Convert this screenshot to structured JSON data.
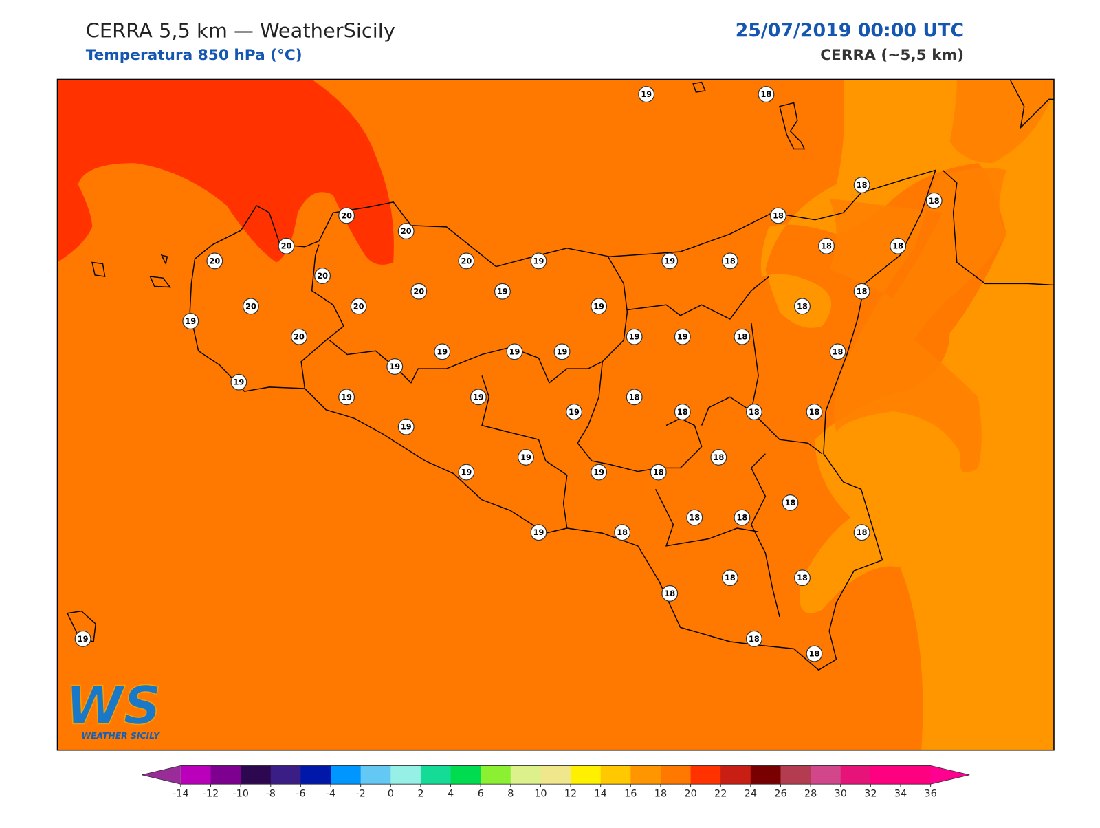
{
  "header": {
    "title": "CERRA 5,5 km — WeatherSicily",
    "subtitle": "Temperatura 850 hPa (°C)",
    "datetime": "25/07/2019 00:00 UTC",
    "model": "CERRA (~5,5 km)"
  },
  "map": {
    "stations": [
      19,
      18,
      18,
      18,
      20,
      20,
      18,
      20,
      20,
      20,
      19,
      19,
      18,
      18,
      18,
      20,
      20,
      19,
      18,
      20,
      20,
      19,
      18,
      19,
      20,
      19,
      19,
      18,
      19,
      19,
      19,
      18,
      19,
      19,
      19,
      19,
      18,
      19,
      18,
      18,
      18,
      19,
      18,
      19,
      19,
      19,
      18,
      18,
      18,
      18,
      19,
      18,
      18,
      18,
      18,
      18,
      19,
      18,
      18
    ]
  },
  "logo": {
    "text": "WS",
    "caption": "WEATHER SICILY"
  },
  "colorbar": {
    "ticks": [
      -14,
      -12,
      -10,
      -8,
      -6,
      -4,
      -2,
      0,
      2,
      4,
      6,
      8,
      10,
      12,
      14,
      16,
      18,
      20,
      22,
      24,
      26,
      28,
      30,
      32,
      34,
      36
    ],
    "colors": [
      "#bb00bb",
      "#7d0090",
      "#2d0850",
      "#3a1e86",
      "#0018aa",
      "#0096ff",
      "#64c8f5",
      "#96f0e6",
      "#14dc96",
      "#00dc50",
      "#8cf032",
      "#dcf08c",
      "#f0e68c",
      "#fff000",
      "#ffc800",
      "#ff9600",
      "#ff7800",
      "#ff3200",
      "#c81e14",
      "#780000",
      "#b43c50",
      "#d2468c",
      "#e61478",
      "#ff0080",
      "#ff0080"
    ],
    "under_color": "#9a2c9a",
    "over_color": "#ff0090"
  }
}
